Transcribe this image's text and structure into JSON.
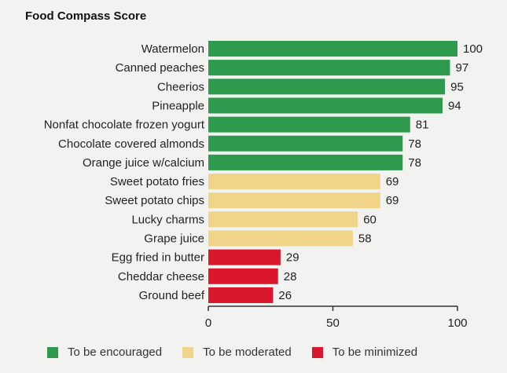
{
  "chart_data": {
    "type": "bar",
    "orientation": "horizontal",
    "title": "Food Compass Score",
    "xlabel": "",
    "ylabel": "",
    "xlim": [
      0,
      100
    ],
    "x_ticks": [
      0,
      50,
      100
    ],
    "grid": false,
    "legend_position": "bottom",
    "categories": [
      "Watermelon",
      "Canned peaches",
      "Cheerios",
      "Pineapple",
      "Nonfat chocolate frozen yogurt",
      "Chocolate covered almonds",
      "Orange juice w/calcium",
      "Sweet potato fries",
      "Sweet potato chips",
      "Lucky charms",
      "Grape juice",
      "Egg fried in butter",
      "Cheddar cheese",
      "Ground beef"
    ],
    "values": [
      100,
      97,
      95,
      94,
      81,
      78,
      78,
      69,
      69,
      60,
      58,
      29,
      28,
      26
    ],
    "groups": [
      "encouraged",
      "encouraged",
      "encouraged",
      "encouraged",
      "encouraged",
      "encouraged",
      "encouraged",
      "moderated",
      "moderated",
      "moderated",
      "moderated",
      "minimized",
      "minimized",
      "minimized"
    ],
    "legend": [
      {
        "key": "encouraged",
        "label": "To be encouraged",
        "color": "#2e9a4e"
      },
      {
        "key": "moderated",
        "label": "To be moderated",
        "color": "#f0d48a"
      },
      {
        "key": "minimized",
        "label": "To be minimized",
        "color": "#d9182d"
      }
    ]
  }
}
